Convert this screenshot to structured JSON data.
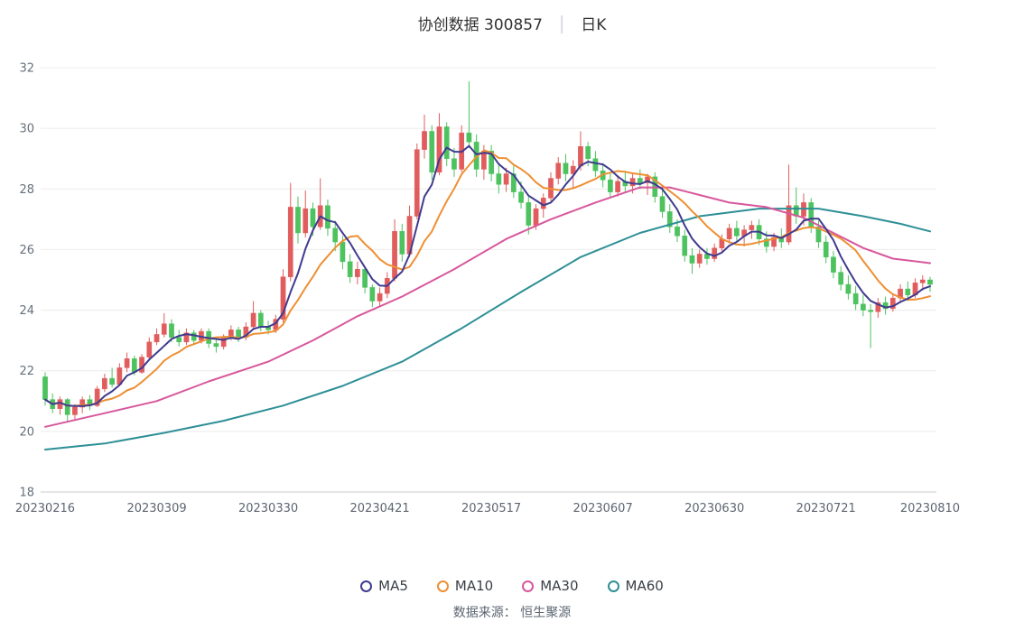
{
  "header": {
    "stock_title": "协创数据 300857",
    "separator": "│",
    "period_label": "日K"
  },
  "footer": {
    "source_text": "数据来源： 恒生聚源"
  },
  "colors": {
    "up": "#e15d5d",
    "down": "#4dc25f",
    "grid": "#ececec",
    "axis_line": "#cccccc",
    "tick_text": "#5c6672",
    "background": "#ffffff"
  },
  "chart_data": {
    "type": "candlestick",
    "title": "协创数据 300857 日K",
    "legend_position": "bottom",
    "grid": true,
    "ylim": [
      18,
      32
    ],
    "y_ticks": [
      18,
      20,
      22,
      24,
      26,
      28,
      30,
      32
    ],
    "x_tick_labels": [
      "20230216",
      "20230309",
      "20230330",
      "20230421",
      "20230517",
      "20230607",
      "20230630",
      "20230721",
      "20230810"
    ],
    "x_tick_indices": [
      0,
      15,
      30,
      45,
      60,
      75,
      90,
      105,
      119
    ],
    "dates": [
      "20230216",
      "20230217",
      "20230220",
      "20230221",
      "20230222",
      "20230223",
      "20230224",
      "20230227",
      "20230228",
      "20230301",
      "20230302",
      "20230303",
      "20230306",
      "20230307",
      "20230308",
      "20230309",
      "20230310",
      "20230313",
      "20230314",
      "20230315",
      "20230316",
      "20230317",
      "20230320",
      "20230321",
      "20230322",
      "20230323",
      "20230324",
      "20230327",
      "20230328",
      "20230329",
      "20230330",
      "20230331",
      "20230403",
      "20230404",
      "20230406",
      "20230407",
      "20230410",
      "20230411",
      "20230412",
      "20230413",
      "20230414",
      "20230417",
      "20230418",
      "20230419",
      "20230420",
      "20230421",
      "20230424",
      "20230425",
      "20230426",
      "20230427",
      "20230428",
      "20230504",
      "20230505",
      "20230508",
      "20230509",
      "20230510",
      "20230511",
      "20230512",
      "20230515",
      "20230516",
      "20230517",
      "20230518",
      "20230519",
      "20230522",
      "20230523",
      "20230524",
      "20230525",
      "20230526",
      "20230529",
      "20230530",
      "20230531",
      "20230601",
      "20230602",
      "20230605",
      "20230606",
      "20230607",
      "20230608",
      "20230609",
      "20230612",
      "20230613",
      "20230614",
      "20230615",
      "20230616",
      "20230619",
      "20230620",
      "20230621",
      "20230626",
      "20230627",
      "20230628",
      "20230629",
      "20230630",
      "20230703",
      "20230704",
      "20230705",
      "20230706",
      "20230707",
      "20230710",
      "20230711",
      "20230712",
      "20230713",
      "20230714",
      "20230717",
      "20230718",
      "20230719",
      "20230720",
      "20230721",
      "20230724",
      "20230725",
      "20230726",
      "20230727",
      "20230728",
      "20230731",
      "20230801",
      "20230802",
      "20230803",
      "20230804",
      "20230807",
      "20230808",
      "20230809",
      "20230810"
    ],
    "candles": [
      [
        21.8,
        21.95,
        20.85,
        21.05
      ],
      [
        21.05,
        21.25,
        20.6,
        20.75
      ],
      [
        20.75,
        21.15,
        20.55,
        21.05
      ],
      [
        21.05,
        21.1,
        20.3,
        20.55
      ],
      [
        20.55,
        20.9,
        20.35,
        20.8
      ],
      [
        20.8,
        21.15,
        20.6,
        21.05
      ],
      [
        21.05,
        21.2,
        20.7,
        20.85
      ],
      [
        20.85,
        21.5,
        20.8,
        21.4
      ],
      [
        21.4,
        21.9,
        21.3,
        21.75
      ],
      [
        21.75,
        22.1,
        21.45,
        21.55
      ],
      [
        21.55,
        22.25,
        21.5,
        22.1
      ],
      [
        22.1,
        22.6,
        21.95,
        22.4
      ],
      [
        22.4,
        22.5,
        21.85,
        21.95
      ],
      [
        21.95,
        22.55,
        21.9,
        22.45
      ],
      [
        22.45,
        23.1,
        22.35,
        22.95
      ],
      [
        22.95,
        23.4,
        22.85,
        23.2
      ],
      [
        23.2,
        23.9,
        23.1,
        23.55
      ],
      [
        23.55,
        23.7,
        22.95,
        23.1
      ],
      [
        23.1,
        23.35,
        22.8,
        22.95
      ],
      [
        22.95,
        23.4,
        22.85,
        23.25
      ],
      [
        23.25,
        23.35,
        22.9,
        23.0
      ],
      [
        23.0,
        23.4,
        22.9,
        23.3
      ],
      [
        23.3,
        23.4,
        22.75,
        22.9
      ],
      [
        22.9,
        23.05,
        22.6,
        22.8
      ],
      [
        22.8,
        23.2,
        22.7,
        23.1
      ],
      [
        23.1,
        23.5,
        23.0,
        23.35
      ],
      [
        23.35,
        23.45,
        22.95,
        23.1
      ],
      [
        23.1,
        23.6,
        23.0,
        23.45
      ],
      [
        23.45,
        24.3,
        23.35,
        23.9
      ],
      [
        23.9,
        24.0,
        23.3,
        23.45
      ],
      [
        23.45,
        23.65,
        23.2,
        23.35
      ],
      [
        23.35,
        23.85,
        23.25,
        23.7
      ],
      [
        23.7,
        25.35,
        23.6,
        25.1
      ],
      [
        25.1,
        28.2,
        24.95,
        27.4
      ],
      [
        27.4,
        27.75,
        26.2,
        26.55
      ],
      [
        26.55,
        27.95,
        26.4,
        27.35
      ],
      [
        27.35,
        27.55,
        26.45,
        26.75
      ],
      [
        26.75,
        28.35,
        26.65,
        27.45
      ],
      [
        27.45,
        27.65,
        26.45,
        26.7
      ],
      [
        26.7,
        26.95,
        25.95,
        26.25
      ],
      [
        26.25,
        26.45,
        25.35,
        25.6
      ],
      [
        25.6,
        25.85,
        24.9,
        25.1
      ],
      [
        25.1,
        25.6,
        24.85,
        25.35
      ],
      [
        25.35,
        25.45,
        24.55,
        24.75
      ],
      [
        24.75,
        24.85,
        24.1,
        24.3
      ],
      [
        24.3,
        24.75,
        24.15,
        24.55
      ],
      [
        24.55,
        25.25,
        24.4,
        25.05
      ],
      [
        25.05,
        27.0,
        24.95,
        26.6
      ],
      [
        26.6,
        26.85,
        25.6,
        25.85
      ],
      [
        25.85,
        27.45,
        25.75,
        27.1
      ],
      [
        27.1,
        29.5,
        27.0,
        29.3
      ],
      [
        29.3,
        30.45,
        29.0,
        29.9
      ],
      [
        29.9,
        30.1,
        28.3,
        28.55
      ],
      [
        28.55,
        30.5,
        28.45,
        30.05
      ],
      [
        30.05,
        30.2,
        28.75,
        29.0
      ],
      [
        29.0,
        29.35,
        28.4,
        28.65
      ],
      [
        28.65,
        30.1,
        28.55,
        29.85
      ],
      [
        29.85,
        31.55,
        29.35,
        29.55
      ],
      [
        29.55,
        29.8,
        28.4,
        28.65
      ],
      [
        28.65,
        29.45,
        28.3,
        29.25
      ],
      [
        29.25,
        29.45,
        28.25,
        28.5
      ],
      [
        28.5,
        28.85,
        27.85,
        28.15
      ],
      [
        28.15,
        28.7,
        27.9,
        28.5
      ],
      [
        28.5,
        28.8,
        27.7,
        27.9
      ],
      [
        27.9,
        28.25,
        27.35,
        27.55
      ],
      [
        27.55,
        27.75,
        26.5,
        26.8
      ],
      [
        26.8,
        27.5,
        26.65,
        27.35
      ],
      [
        27.35,
        27.85,
        27.05,
        27.7
      ],
      [
        27.7,
        28.55,
        27.55,
        28.35
      ],
      [
        28.35,
        29.05,
        28.15,
        28.85
      ],
      [
        28.85,
        29.15,
        28.25,
        28.5
      ],
      [
        28.5,
        28.95,
        28.05,
        28.75
      ],
      [
        28.75,
        29.9,
        28.6,
        29.4
      ],
      [
        29.4,
        29.55,
        28.75,
        29.0
      ],
      [
        29.0,
        29.25,
        28.4,
        28.6
      ],
      [
        28.6,
        28.85,
        28.05,
        28.3
      ],
      [
        28.3,
        28.55,
        27.7,
        27.9
      ],
      [
        27.9,
        28.45,
        27.75,
        28.25
      ],
      [
        28.25,
        28.6,
        27.9,
        28.1
      ],
      [
        28.1,
        28.5,
        27.85,
        28.35
      ],
      [
        28.35,
        28.65,
        28.0,
        28.2
      ],
      [
        28.2,
        28.5,
        27.8,
        28.4
      ],
      [
        28.4,
        28.55,
        27.55,
        27.75
      ],
      [
        27.75,
        27.95,
        27.05,
        27.25
      ],
      [
        27.25,
        27.5,
        26.55,
        26.75
      ],
      [
        26.75,
        27.0,
        26.25,
        26.45
      ],
      [
        26.45,
        26.65,
        25.6,
        25.8
      ],
      [
        25.8,
        26.05,
        25.2,
        25.55
      ],
      [
        25.55,
        26.0,
        25.4,
        25.85
      ],
      [
        25.85,
        26.05,
        25.5,
        25.7
      ],
      [
        25.7,
        26.2,
        25.6,
        26.05
      ],
      [
        26.05,
        26.5,
        25.9,
        26.35
      ],
      [
        26.35,
        26.85,
        26.2,
        26.7
      ],
      [
        26.7,
        26.95,
        26.25,
        26.45
      ],
      [
        26.45,
        26.8,
        26.1,
        26.65
      ],
      [
        26.65,
        26.95,
        26.35,
        26.8
      ],
      [
        26.8,
        27.0,
        26.15,
        26.35
      ],
      [
        26.35,
        26.6,
        25.9,
        26.1
      ],
      [
        26.1,
        26.55,
        25.95,
        26.4
      ],
      [
        26.4,
        26.7,
        26.05,
        26.25
      ],
      [
        26.25,
        28.8,
        26.15,
        27.45
      ],
      [
        27.45,
        28.05,
        26.85,
        27.1
      ],
      [
        27.1,
        27.85,
        26.8,
        27.55
      ],
      [
        27.55,
        27.7,
        26.55,
        26.75
      ],
      [
        26.75,
        26.95,
        26.05,
        26.25
      ],
      [
        26.25,
        26.45,
        25.55,
        25.75
      ],
      [
        25.75,
        25.95,
        25.05,
        25.25
      ],
      [
        25.25,
        25.45,
        24.65,
        24.85
      ],
      [
        24.85,
        25.15,
        24.35,
        24.55
      ],
      [
        24.55,
        24.8,
        24.0,
        24.2
      ],
      [
        24.2,
        24.5,
        23.8,
        24.0
      ],
      [
        24.0,
        24.2,
        22.75,
        23.95
      ],
      [
        23.95,
        24.4,
        23.75,
        24.25
      ],
      [
        24.25,
        24.45,
        23.85,
        24.05
      ],
      [
        24.05,
        24.55,
        23.95,
        24.4
      ],
      [
        24.4,
        24.85,
        24.25,
        24.7
      ],
      [
        24.7,
        24.95,
        24.3,
        24.5
      ],
      [
        24.5,
        25.05,
        24.4,
        24.9
      ],
      [
        24.9,
        25.15,
        24.65,
        25.0
      ],
      [
        25.0,
        25.1,
        24.6,
        24.85
      ]
    ],
    "ma_series": [
      {
        "name": "MA5",
        "color": "#3f3b8f",
        "source": "computed",
        "window": 5
      },
      {
        "name": "MA10",
        "color": "#ee8f33",
        "source": "computed",
        "window": 10
      },
      {
        "name": "MA30",
        "color": "#d8579c",
        "source": "anchors",
        "anchors": [
          [
            0,
            20.15
          ],
          [
            8,
            20.6
          ],
          [
            15,
            21.0
          ],
          [
            22,
            21.65
          ],
          [
            30,
            22.3
          ],
          [
            36,
            23.0
          ],
          [
            42,
            23.8
          ],
          [
            48,
            24.45
          ],
          [
            55,
            25.35
          ],
          [
            62,
            26.35
          ],
          [
            68,
            27.0
          ],
          [
            74,
            27.55
          ],
          [
            80,
            28.05
          ],
          [
            84,
            28.05
          ],
          [
            88,
            27.8
          ],
          [
            92,
            27.55
          ],
          [
            97,
            27.4
          ],
          [
            102,
            27.05
          ],
          [
            106,
            26.55
          ],
          [
            110,
            26.05
          ],
          [
            114,
            25.7
          ],
          [
            119,
            25.55
          ]
        ]
      },
      {
        "name": "MA60",
        "color": "#2e8f96",
        "source": "anchors",
        "anchors": [
          [
            0,
            19.4
          ],
          [
            8,
            19.6
          ],
          [
            16,
            19.95
          ],
          [
            24,
            20.35
          ],
          [
            32,
            20.85
          ],
          [
            40,
            21.5
          ],
          [
            48,
            22.3
          ],
          [
            56,
            23.4
          ],
          [
            64,
            24.6
          ],
          [
            72,
            25.75
          ],
          [
            80,
            26.55
          ],
          [
            88,
            27.1
          ],
          [
            96,
            27.35
          ],
          [
            104,
            27.35
          ],
          [
            110,
            27.1
          ],
          [
            115,
            26.85
          ],
          [
            119,
            26.6
          ]
        ]
      }
    ]
  }
}
